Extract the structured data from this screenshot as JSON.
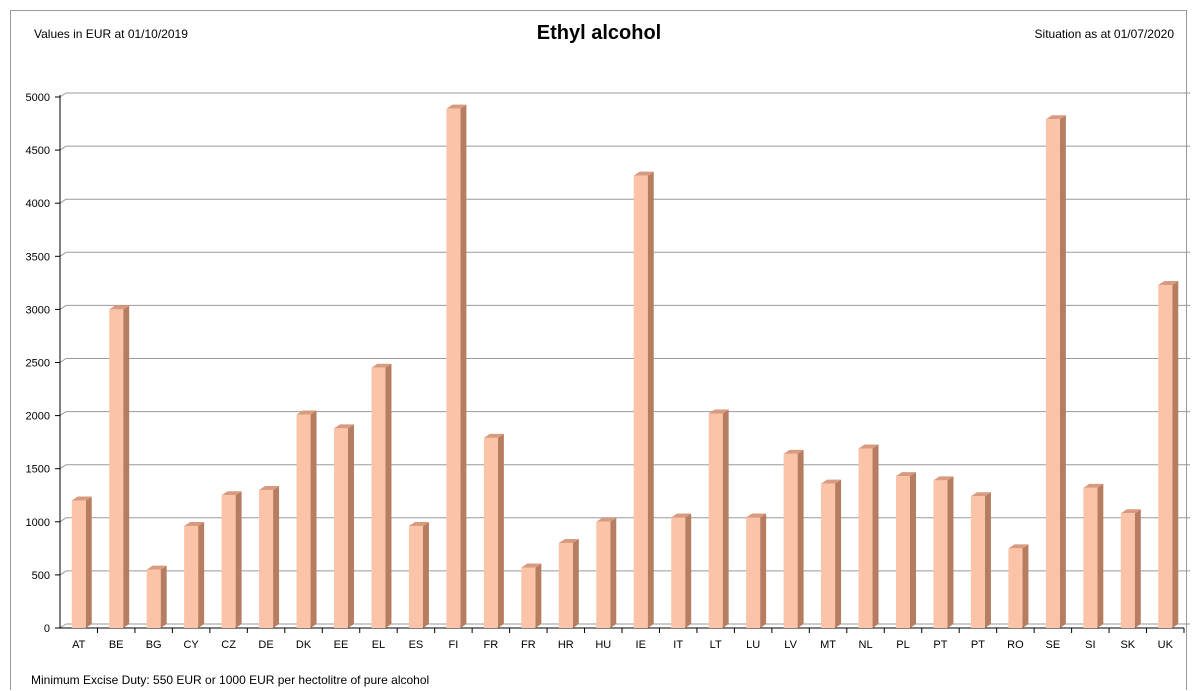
{
  "header": {
    "left_note": "Values in EUR at 01/10/2019",
    "title": "Ethyl alcohol",
    "right_note": "Situation as at 01/07/2020"
  },
  "footnote": "Minimum Excise Duty: 550 EUR or 1000 EUR per hectolitre of pure alcohol",
  "colors": {
    "bar_front": "#fbc3a7",
    "bar_side": "#b77d61",
    "bar_top": "#d89b7f",
    "gridline": "#9a9a9a",
    "axis": "#000000"
  },
  "chart_data": {
    "type": "bar",
    "title": "Ethyl alcohol",
    "xlabel": "",
    "ylabel": "",
    "ylim": [
      0,
      5000
    ],
    "yticks": [
      0,
      500,
      1000,
      1500,
      2000,
      2500,
      3000,
      3500,
      4000,
      4500,
      5000
    ],
    "grid": true,
    "categories": [
      "AT",
      "BE",
      "BG",
      "CY",
      "CZ",
      "DE",
      "DK",
      "EE",
      "EL",
      "ES",
      "FI",
      "FR",
      "FR",
      "HR",
      "HU",
      "IE",
      "IT",
      "LT",
      "LU",
      "LV",
      "MT",
      "NL",
      "PL",
      "PT",
      "PT",
      "RO",
      "SE",
      "SI",
      "SK",
      "UK"
    ],
    "values": [
      1200,
      3000,
      550,
      960,
      1250,
      1300,
      2010,
      1880,
      2450,
      960,
      4890,
      1790,
      570,
      800,
      1000,
      4260,
      1040,
      2020,
      1040,
      1640,
      1360,
      1690,
      1430,
      1390,
      1240,
      750,
      4790,
      1320,
      1080,
      3230
    ]
  }
}
